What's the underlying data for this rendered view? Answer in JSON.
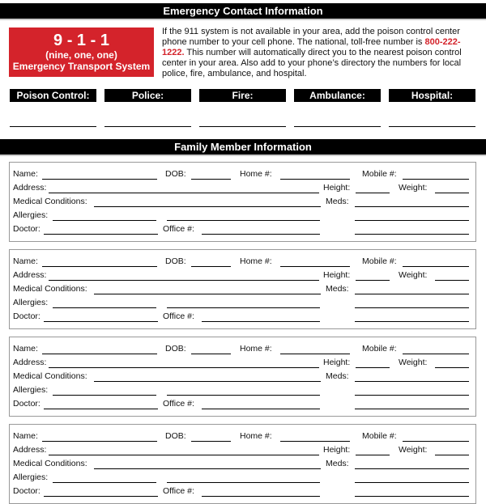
{
  "emergency": {
    "title": "Emergency Contact Information",
    "box": {
      "number": "9 - 1 - 1",
      "subtitle": "(nine, one, one)",
      "system": "Emergency Transport System",
      "color": "#d4232b"
    },
    "intro_before": "If the 911 system is not available in your area, add the poison control center phone number to your cell phone. The national, toll-free number is ",
    "phone": "800-222-1222.",
    "intro_after": " This number will automatically direct you to the nearest poison control center in your area. Also add to your phone’s directory the numbers for local police, fire, ambulance, and hospital.",
    "contacts": [
      "Poison Control:",
      "Police:",
      "Fire:",
      "Ambulance:",
      "Hospital:"
    ]
  },
  "family": {
    "title": "Family Member Information",
    "labels": {
      "name": "Name:",
      "dob": "DOB:",
      "home": "Home #:",
      "mobile": "Mobile #:",
      "address": "Address:",
      "height": "Height:",
      "weight": "Weight:",
      "medical": "Medical Conditions:",
      "meds": "Meds:",
      "allergies": "Allergies:",
      "doctor": "Doctor:",
      "office": "Office #:"
    },
    "member_count": 4
  }
}
